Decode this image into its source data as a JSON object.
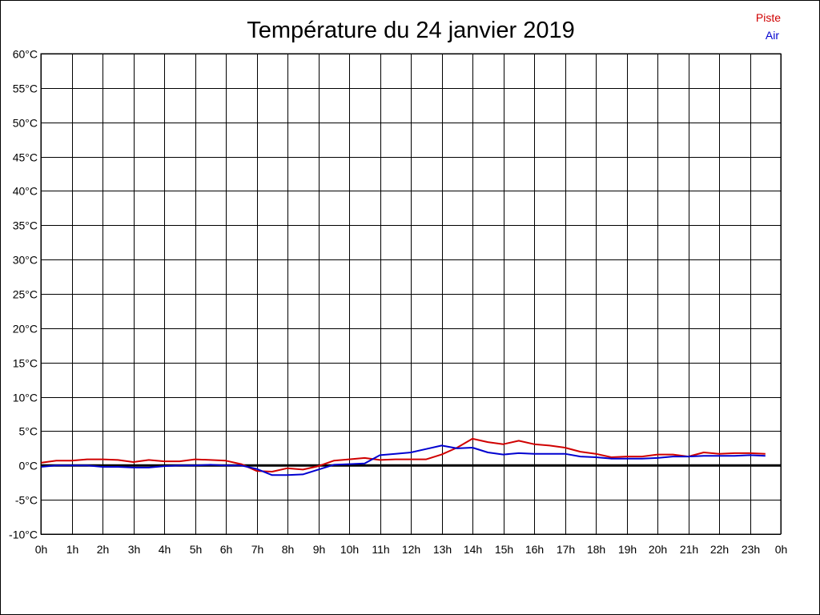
{
  "chart_data": {
    "type": "line",
    "title": "Température du 24 janvier 2019",
    "xlabel": "",
    "ylabel": "",
    "x_ticks": [
      "0h",
      "1h",
      "2h",
      "3h",
      "4h",
      "5h",
      "6h",
      "7h",
      "8h",
      "9h",
      "10h",
      "11h",
      "12h",
      "13h",
      "14h",
      "15h",
      "16h",
      "17h",
      "18h",
      "19h",
      "20h",
      "21h",
      "22h",
      "23h",
      "0h"
    ],
    "y_ticks": [
      "-10°C",
      "-5°C",
      "0°C",
      "5°C",
      "10°C",
      "15°C",
      "20°C",
      "25°C",
      "30°C",
      "35°C",
      "40°C",
      "45°C",
      "50°C",
      "55°C",
      "60°C"
    ],
    "xlim": [
      0,
      24
    ],
    "ylim": [
      -10,
      60
    ],
    "grid": true,
    "legend_position": "top-right",
    "zero_line": true,
    "x": [
      0,
      0.5,
      1,
      1.5,
      2,
      2.5,
      3,
      3.5,
      4,
      4.5,
      5,
      5.5,
      6,
      6.5,
      7,
      7.5,
      8,
      8.5,
      9,
      9.5,
      10,
      10.5,
      11,
      11.5,
      12,
      12.5,
      13,
      13.5,
      14,
      14.5,
      15,
      15.5,
      16,
      16.5,
      17,
      17.5,
      18,
      18.5,
      19,
      19.5,
      20,
      20.5,
      21,
      21.5,
      22,
      22.5,
      23,
      23.5
    ],
    "series": [
      {
        "name": "Piste",
        "color": "#d00000",
        "values": [
          0.4,
          0.7,
          0.7,
          0.9,
          0.9,
          0.8,
          0.5,
          0.8,
          0.6,
          0.6,
          0.9,
          0.8,
          0.7,
          0.2,
          -0.8,
          -0.9,
          -0.4,
          -0.6,
          -0.1,
          0.7,
          0.9,
          1.1,
          0.8,
          0.9,
          0.9,
          0.9,
          1.6,
          2.6,
          3.9,
          3.4,
          3.1,
          3.6,
          3.1,
          2.9,
          2.6,
          2.0,
          1.7,
          1.2,
          1.3,
          1.3,
          1.6,
          1.6,
          1.3,
          1.9,
          1.7,
          1.8,
          1.8,
          1.7
        ]
      },
      {
        "name": "Air",
        "color": "#0000d0",
        "values": [
          -0.2,
          0.0,
          0.0,
          0.0,
          -0.2,
          -0.2,
          -0.3,
          -0.3,
          -0.1,
          0.0,
          0.0,
          0.1,
          0.0,
          0.0,
          -0.5,
          -1.4,
          -1.4,
          -1.3,
          -0.6,
          0.1,
          0.2,
          0.3,
          1.5,
          1.7,
          1.9,
          2.4,
          2.9,
          2.5,
          2.6,
          1.9,
          1.6,
          1.8,
          1.7,
          1.7,
          1.7,
          1.3,
          1.2,
          1.0,
          1.0,
          1.0,
          1.1,
          1.3,
          1.3,
          1.4,
          1.4,
          1.4,
          1.5,
          1.4
        ]
      }
    ]
  }
}
